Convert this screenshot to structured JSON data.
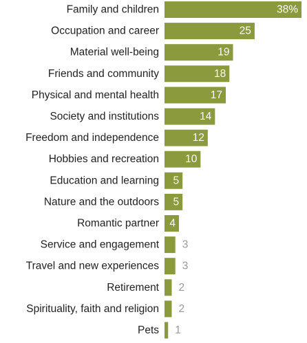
{
  "chart_data": {
    "type": "bar",
    "orientation": "horizontal",
    "categories": [
      "Family and children",
      "Occupation and career",
      "Material well-being",
      "Friends and community",
      "Physical and mental health",
      "Society and institutions",
      "Freedom and independence",
      "Hobbies and recreation",
      "Education and learning",
      "Nature and the outdoors",
      "Romantic partner",
      "Service and engagement",
      "Travel and new experiences",
      "Retirement",
      "Spirituality, faith and religion",
      "Pets"
    ],
    "values": [
      38,
      25,
      19,
      18,
      17,
      14,
      12,
      10,
      5,
      5,
      4,
      3,
      3,
      2,
      2,
      1
    ],
    "value_labels": [
      "38%",
      "25",
      "19",
      "18",
      "17",
      "14",
      "12",
      "10",
      "5",
      "5",
      "4",
      "3",
      "3",
      "2",
      "2",
      "1"
    ],
    "title": "",
    "xlabel": "",
    "ylabel": "",
    "xlim": [
      0,
      38
    ],
    "grid": false,
    "legend": "none",
    "colors": {
      "bar": "#8a9a3c",
      "label_inside": "#ffffff",
      "label_outside": "#999999",
      "category_text": "#222222"
    }
  }
}
